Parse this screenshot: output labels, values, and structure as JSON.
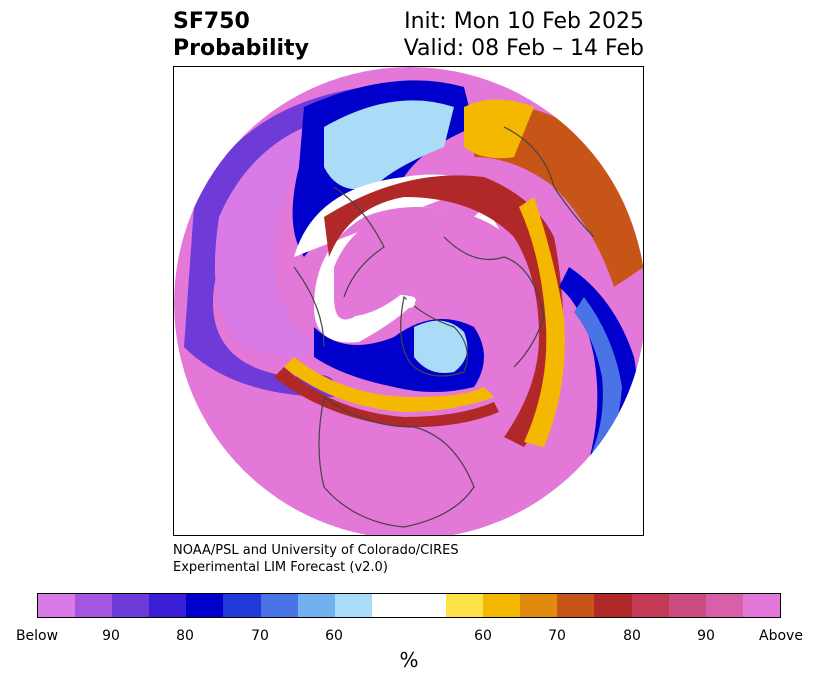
{
  "header": {
    "variable": "SF750",
    "product": "Probability",
    "init": "Init: Mon 10 Feb 2025",
    "valid": "Valid: 08 Feb – 14 Feb"
  },
  "credit": {
    "line1": "NOAA/PSL and University of Colorado/CIRES",
    "line2": "Experimental LIM Forecast (v2.0)"
  },
  "colorbar": {
    "colors": [
      "#d97be6",
      "#a456e0",
      "#6e3ad8",
      "#3a1fd6",
      "#0000cc",
      "#2139d9",
      "#4a73e6",
      "#72b0f0",
      "#aadcf8",
      "#ffffff",
      "#ffffff",
      "#fde24a",
      "#f5b800",
      "#e08a10",
      "#c85518",
      "#b02828",
      "#c23a55",
      "#cc4c80",
      "#d860a8",
      "#e478d8"
    ],
    "tick_labels": [
      "Below",
      "90",
      "80",
      "70",
      "60",
      "60",
      "70",
      "80",
      "90",
      "Above"
    ],
    "unit": "%"
  },
  "map": {
    "projection": "north-polar stereographic",
    "field_colors": {
      "above_high": "#e478d8",
      "above_mid": "#cc4c80",
      "above_low": "#b02828",
      "neutral_pos": "#f5b800",
      "neutral": "#ffffff",
      "below_low": "#aadcf8",
      "below_mid": "#4a73e6",
      "below_high": "#0000cc",
      "below_extreme": "#6e3ad8",
      "below_max": "#d97be6"
    }
  }
}
